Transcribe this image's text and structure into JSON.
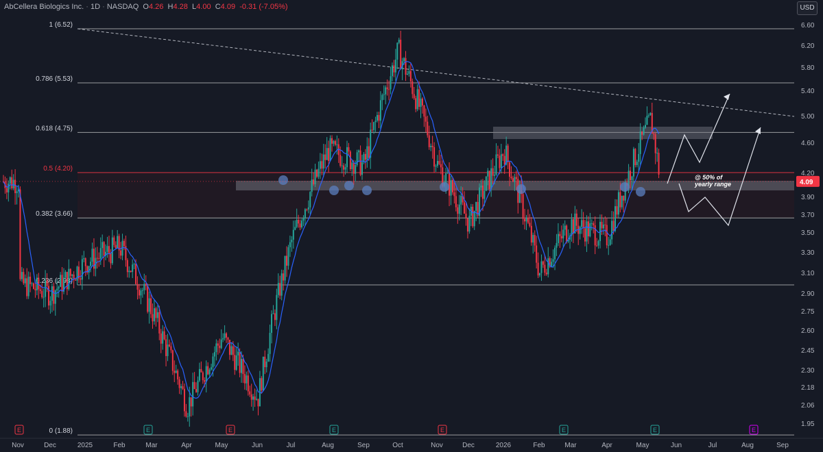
{
  "header": {
    "symbol": "AbCellera Biologics Inc.",
    "interval": "1D",
    "exchange": "NASDAQ",
    "open_label": "O",
    "open": "4.26",
    "high_label": "H",
    "high": "4.28",
    "low_label": "L",
    "low": "4.00",
    "close_label": "C",
    "close": "4.09",
    "change": "-0.31 (-7.05%)"
  },
  "currency": "USD",
  "colors": {
    "background": "#161a25",
    "up": "#26a69a",
    "down": "#f23645",
    "ma_line": "#2962ff",
    "fib_line": "#c8c8c8",
    "fib_half_line": "#f23645",
    "zone": "#787b86",
    "marker": "#5b7fbf",
    "earnings_red": "#f23645",
    "earnings_green": "#26a69a",
    "earnings_purple": "#d500f9"
  },
  "chart_data": {
    "type": "candlestick",
    "title": "AbCellera Biologics Inc. · 1D · NASDAQ",
    "ylabel": "USD",
    "ylim": [
      1.88,
      6.6
    ],
    "y_ticks": [
      "6.60",
      "6.20",
      "5.80",
      "5.40",
      "5.00",
      "4.60",
      "4.20",
      "3.90",
      "3.70",
      "3.50",
      "3.30",
      "3.10",
      "2.90",
      "2.75",
      "2.60",
      "2.45",
      "2.30",
      "2.18",
      "2.06",
      "1.95"
    ],
    "x_ticks": [
      "Nov",
      "Dec",
      "2025",
      "Feb",
      "Mar",
      "Apr",
      "May",
      "Jun",
      "Jul",
      "Aug",
      "Sep",
      "Oct",
      "Nov",
      "Dec",
      "2026",
      "Feb",
      "Mar",
      "Apr",
      "May",
      "Jun",
      "Jul",
      "Aug",
      "Sep"
    ],
    "last_price": "4.09",
    "fib_levels": [
      {
        "label": "1 (6.52)",
        "value": 6.52
      },
      {
        "label": "0.786 (5.53)",
        "value": 5.53
      },
      {
        "label": "0.618 (4.75)",
        "value": 4.75
      },
      {
        "label": "0.5 (4.20)",
        "value": 4.2
      },
      {
        "label": "0.382 (3.66)",
        "value": 3.66
      },
      {
        "label": "0.236 (2.98)",
        "value": 2.98
      },
      {
        "label": "0 (1.88)",
        "value": 1.88
      }
    ],
    "price_path": [
      [
        "Nov",
        3.0
      ],
      [
        "Dec",
        2.9
      ],
      [
        "2025",
        3.2
      ],
      [
        "Feb",
        3.35
      ],
      [
        "Mar",
        2.75
      ],
      [
        "Apr",
        2.05
      ],
      [
        "May",
        2.55
      ],
      [
        "Jun",
        2.1
      ],
      [
        "Jul",
        3.4
      ],
      [
        "Aug",
        4.5
      ],
      [
        "Sep",
        4.3
      ],
      [
        "Oct",
        6.1
      ],
      [
        "Nov",
        4.3
      ],
      [
        "Dec",
        3.6
      ],
      [
        "2026",
        4.5
      ],
      [
        "Feb",
        3.1
      ],
      [
        "Mar",
        3.6
      ],
      [
        "Apr",
        3.45
      ],
      [
        "May",
        4.95
      ],
      [
        "May",
        4.09
      ]
    ],
    "annotation": "@ 50% of\nyearly range",
    "earnings_markers": [
      "E",
      "E",
      "E",
      "E",
      "E",
      "E",
      "E",
      "E"
    ]
  }
}
